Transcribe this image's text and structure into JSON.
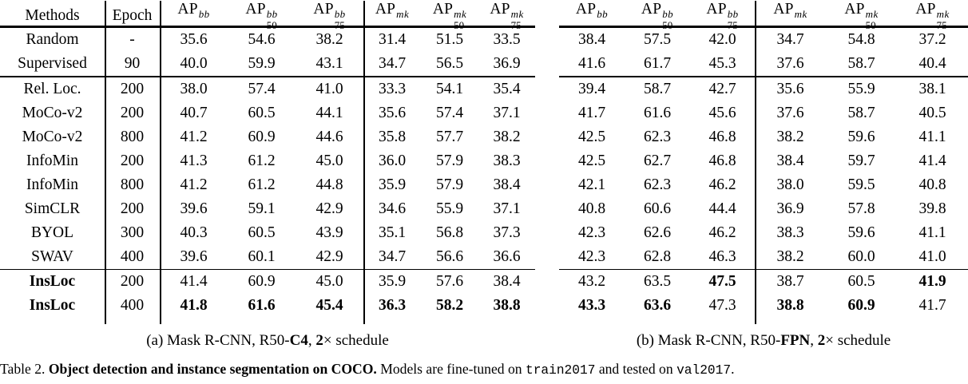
{
  "table": {
    "header": {
      "methods": "Methods",
      "epoch": "Epoch"
    },
    "data_columns": [
      {
        "base": "AP",
        "sup": "bb",
        "sub": ""
      },
      {
        "base": "AP",
        "sup": "bb",
        "sub": "50"
      },
      {
        "base": "AP",
        "sup": "bb",
        "sub": "75"
      },
      {
        "base": "AP",
        "sup": "mk",
        "sub": ""
      },
      {
        "base": "AP",
        "sup": "mk",
        "sub": "50"
      },
      {
        "base": "AP",
        "sup": "mk",
        "sub": "75"
      }
    ],
    "group_sizes": [
      2,
      8,
      2
    ],
    "rows": [
      {
        "method": "Random",
        "epoch": "-",
        "bold_method": false,
        "left": [
          "35.6",
          "54.6",
          "38.2",
          "31.4",
          "51.5",
          "33.5"
        ],
        "right": [
          "38.4",
          "57.5",
          "42.0",
          "34.7",
          "54.8",
          "37.2"
        ],
        "bold_left": [],
        "bold_right": []
      },
      {
        "method": "Supervised",
        "epoch": "90",
        "bold_method": false,
        "left": [
          "40.0",
          "59.9",
          "43.1",
          "34.7",
          "56.5",
          "36.9"
        ],
        "right": [
          "41.6",
          "61.7",
          "45.3",
          "37.6",
          "58.7",
          "40.4"
        ],
        "bold_left": [],
        "bold_right": []
      },
      {
        "method": "Rel. Loc.",
        "epoch": "200",
        "bold_method": false,
        "left": [
          "38.0",
          "57.4",
          "41.0",
          "33.3",
          "54.1",
          "35.4"
        ],
        "right": [
          "39.4",
          "58.7",
          "42.7",
          "35.6",
          "55.9",
          "38.1"
        ],
        "bold_left": [],
        "bold_right": []
      },
      {
        "method": "MoCo-v2",
        "epoch": "200",
        "bold_method": false,
        "left": [
          "40.7",
          "60.5",
          "44.1",
          "35.6",
          "57.4",
          "37.1"
        ],
        "right": [
          "41.7",
          "61.6",
          "45.6",
          "37.6",
          "58.7",
          "40.5"
        ],
        "bold_left": [],
        "bold_right": []
      },
      {
        "method": "MoCo-v2",
        "epoch": "800",
        "bold_method": false,
        "left": [
          "41.2",
          "60.9",
          "44.6",
          "35.8",
          "57.7",
          "38.2"
        ],
        "right": [
          "42.5",
          "62.3",
          "46.8",
          "38.2",
          "59.6",
          "41.1"
        ],
        "bold_left": [],
        "bold_right": []
      },
      {
        "method": "InfoMin",
        "epoch": "200",
        "bold_method": false,
        "left": [
          "41.3",
          "61.2",
          "45.0",
          "36.0",
          "57.9",
          "38.3"
        ],
        "right": [
          "42.5",
          "62.7",
          "46.8",
          "38.4",
          "59.7",
          "41.4"
        ],
        "bold_left": [],
        "bold_right": []
      },
      {
        "method": "InfoMin",
        "epoch": "800",
        "bold_method": false,
        "left": [
          "41.2",
          "61.2",
          "44.8",
          "35.9",
          "57.9",
          "38.4"
        ],
        "right": [
          "42.1",
          "62.3",
          "46.2",
          "38.0",
          "59.5",
          "40.8"
        ],
        "bold_left": [],
        "bold_right": []
      },
      {
        "method": "SimCLR",
        "epoch": "200",
        "bold_method": false,
        "left": [
          "39.6",
          "59.1",
          "42.9",
          "34.6",
          "55.9",
          "37.1"
        ],
        "right": [
          "40.8",
          "60.6",
          "44.4",
          "36.9",
          "57.8",
          "39.8"
        ],
        "bold_left": [],
        "bold_right": []
      },
      {
        "method": "BYOL",
        "epoch": "300",
        "bold_method": false,
        "left": [
          "40.3",
          "60.5",
          "43.9",
          "35.1",
          "56.8",
          "37.3"
        ],
        "right": [
          "42.3",
          "62.6",
          "46.2",
          "38.3",
          "59.6",
          "41.1"
        ],
        "bold_left": [],
        "bold_right": []
      },
      {
        "method": "SWAV",
        "epoch": "400",
        "bold_method": false,
        "left": [
          "39.6",
          "60.1",
          "42.9",
          "34.7",
          "56.6",
          "36.6"
        ],
        "right": [
          "42.3",
          "62.8",
          "46.3",
          "38.2",
          "60.0",
          "41.0"
        ],
        "bold_left": [],
        "bold_right": []
      },
      {
        "method": "InsLoc",
        "epoch": "200",
        "bold_method": true,
        "left": [
          "41.4",
          "60.9",
          "45.0",
          "35.9",
          "57.6",
          "38.4"
        ],
        "right": [
          "43.2",
          "63.5",
          "47.5",
          "38.7",
          "60.5",
          "41.9"
        ],
        "bold_left": [],
        "bold_right": [
          2,
          5
        ]
      },
      {
        "method": "InsLoc",
        "epoch": "400",
        "bold_method": true,
        "left": [
          "41.8",
          "61.6",
          "45.4",
          "36.3",
          "58.2",
          "38.8"
        ],
        "right": [
          "43.3",
          "63.6",
          "47.3",
          "38.8",
          "60.9",
          "41.7"
        ],
        "bold_left": [
          0,
          1,
          2,
          3,
          4,
          5
        ],
        "bold_right": [
          0,
          1,
          3,
          4
        ]
      }
    ]
  },
  "captions": {
    "a": {
      "pre": "(a) Mask R-CNN, R50-",
      "variant": "C4",
      "sep": ", ",
      "sched_num": "2",
      "post": "× schedule"
    },
    "b": {
      "pre": "(b) Mask R-CNN, R50-",
      "variant": "FPN",
      "sep": ", ",
      "sched_num": "2",
      "post": "× schedule"
    },
    "table": {
      "label": "Table 2. ",
      "bold": "Object detection and instance segmentation on COCO.",
      "t1": " Models are fine-tuned on ",
      "code1": "train2017",
      "t2": " and tested on ",
      "code2": "val2017",
      "t3": "."
    }
  }
}
